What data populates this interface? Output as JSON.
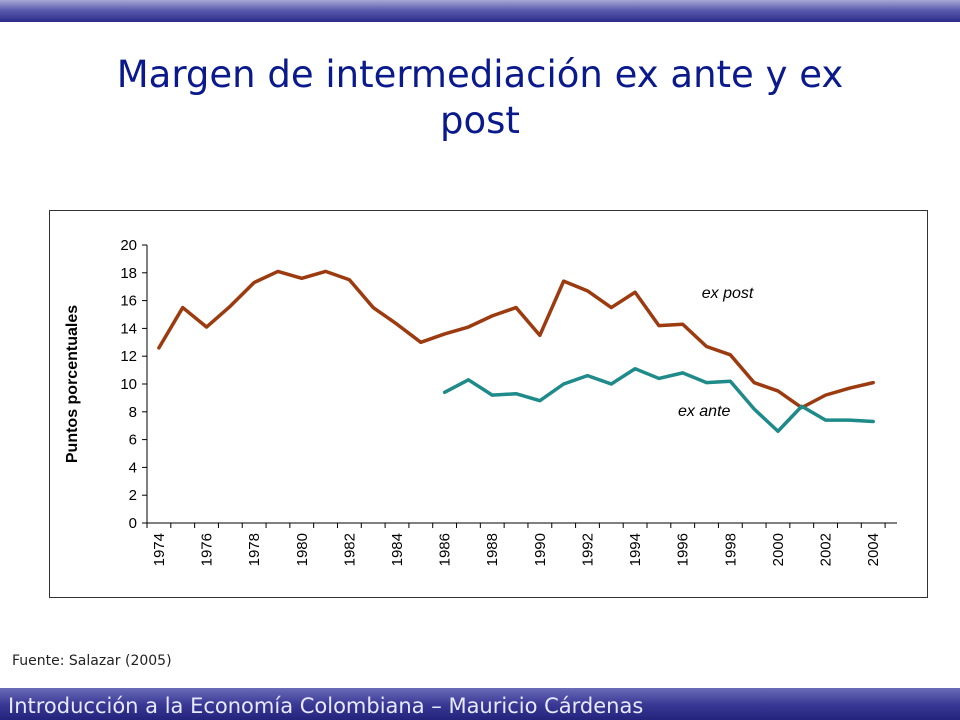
{
  "slide": {
    "title": "Margen de intermediación ex ante y ex post",
    "source": "Fuente: Salazar (2005)",
    "footer": "Introducción a la Economía Colombiana – Mauricio Cárdenas"
  },
  "chart_data": {
    "type": "line",
    "title": "",
    "xlabel": "",
    "ylabel": "Puntos porcentuales",
    "ylim": [
      0,
      20
    ],
    "yticks": [
      0,
      2,
      4,
      6,
      8,
      10,
      12,
      14,
      16,
      18,
      20
    ],
    "xticks": [
      "1974",
      "1976",
      "1978",
      "1980",
      "1982",
      "1984",
      "1986",
      "1988",
      "1990",
      "1992",
      "1994",
      "1996",
      "1998",
      "2000",
      "2002",
      "2004"
    ],
    "grid": false,
    "legend": "none",
    "series": [
      {
        "name": "ex post",
        "color": "#9c3a10",
        "x": [
          1974.0,
          1975.0,
          1976.0,
          1977.0,
          1978.0,
          1979.0,
          1980.0,
          1981.0,
          1982.0,
          1983.0,
          1984.0,
          1985.0,
          1986.0,
          1987.0,
          1988.0,
          1989.0,
          1990.0,
          1991.0,
          1992.0,
          1993.0,
          1994.0,
          1995.0,
          1996.0,
          1997.0,
          1998.0,
          1999.0,
          2000.0,
          2001.0,
          2002.0,
          2003.0,
          2004.0
        ],
        "values": [
          12.6,
          15.5,
          14.1,
          15.6,
          17.3,
          18.1,
          17.6,
          18.1,
          17.5,
          15.5,
          14.3,
          13.0,
          13.6,
          14.1,
          14.9,
          15.5,
          13.5,
          17.4,
          16.7,
          15.5,
          16.6,
          14.2,
          14.3,
          12.7,
          12.1,
          10.1,
          9.5,
          8.3,
          9.2,
          9.7,
          10.1
        ]
      },
      {
        "name": "ex ante",
        "color": "#1e8a8a",
        "x": [
          1986.0,
          1987.0,
          1988.0,
          1989.0,
          1990.0,
          1991.0,
          1992.0,
          1993.0,
          1994.0,
          1995.0,
          1996.0,
          1997.0,
          1998.0,
          1999.0,
          2000.0,
          2001.0,
          2002.0,
          2003.0,
          2004.0
        ],
        "values": [
          9.4,
          10.3,
          9.2,
          9.3,
          8.8,
          10.0,
          10.6,
          10.0,
          11.1,
          10.4,
          10.8,
          10.1,
          10.2,
          8.2,
          6.6,
          8.4,
          7.4,
          7.4,
          7.3
        ]
      }
    ],
    "annotations": [
      {
        "text": "ex post",
        "x": 1996.8,
        "y": 16.2
      },
      {
        "text": "ex ante",
        "x": 1995.8,
        "y": 7.7
      }
    ]
  }
}
